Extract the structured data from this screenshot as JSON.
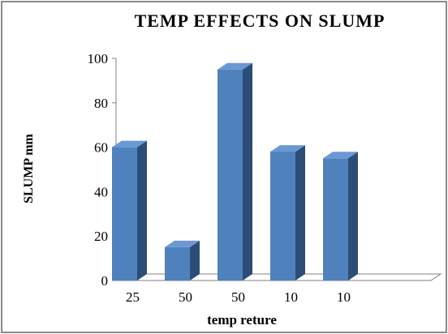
{
  "chart_data": {
    "type": "bar",
    "title": "TEMP EFFECTS ON SLUMP",
    "xlabel": "temp reture",
    "ylabel": "SLUMP mm",
    "categories": [
      "25",
      "50",
      "50",
      "10",
      "10"
    ],
    "values": [
      60,
      15,
      95,
      58,
      55
    ],
    "ylim": [
      0,
      100
    ],
    "yticks": [
      "0",
      "20",
      "40",
      "60",
      "80",
      "100"
    ],
    "grid": false,
    "legend": "none",
    "bar_3d": true,
    "colors": {
      "bar_front": "#4F81BD",
      "bar_side": "#2C4D75",
      "bar_top": "#6B98D4",
      "axis": "#808080"
    }
  }
}
